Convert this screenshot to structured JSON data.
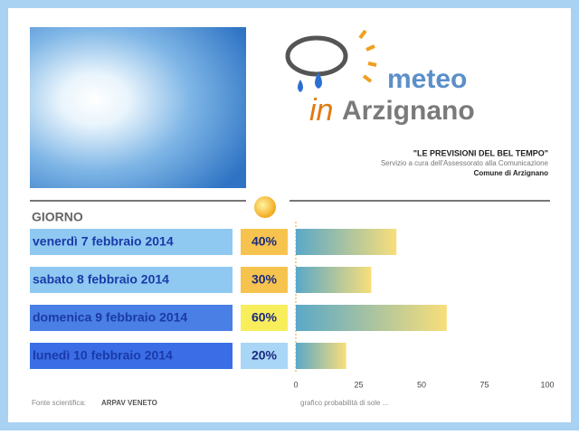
{
  "header": {
    "logo_top": "meteo",
    "logo_in": "in",
    "logo_bottom": "Arzignano",
    "tagline": "\"LE PREVISIONI DEL BEL TEMPO\"",
    "service": "Servizio a cura dell'Assessorato alla Comunicazione",
    "comune": "Comune di Arzignano"
  },
  "chart_data": {
    "type": "bar",
    "column_title": "GIORNO",
    "categories": [
      "venerdì 7 febbraio 2014",
      "sabato 8 febbraio 2014",
      "domenica 9 febbraio 2014",
      "lunedì 10 febbraio 2014"
    ],
    "category_colors": [
      "#8fc9f2",
      "#8fc9f2",
      "#4a7fe6",
      "#3b6ee6"
    ],
    "values": [
      40,
      30,
      60,
      20
    ],
    "value_labels": [
      "40%",
      "30%",
      "60%",
      "20%"
    ],
    "label_colors": [
      "#f6c44e",
      "#f6c44e",
      "#f8ee5c",
      "#a9d6f6"
    ],
    "xlim": [
      0,
      100
    ],
    "xticks": [
      0,
      25,
      50,
      75,
      100
    ],
    "caption": "grafico probabilità di sole ...",
    "source_label": "Fonte scientifica:",
    "source": "ARPAV VENETO"
  }
}
